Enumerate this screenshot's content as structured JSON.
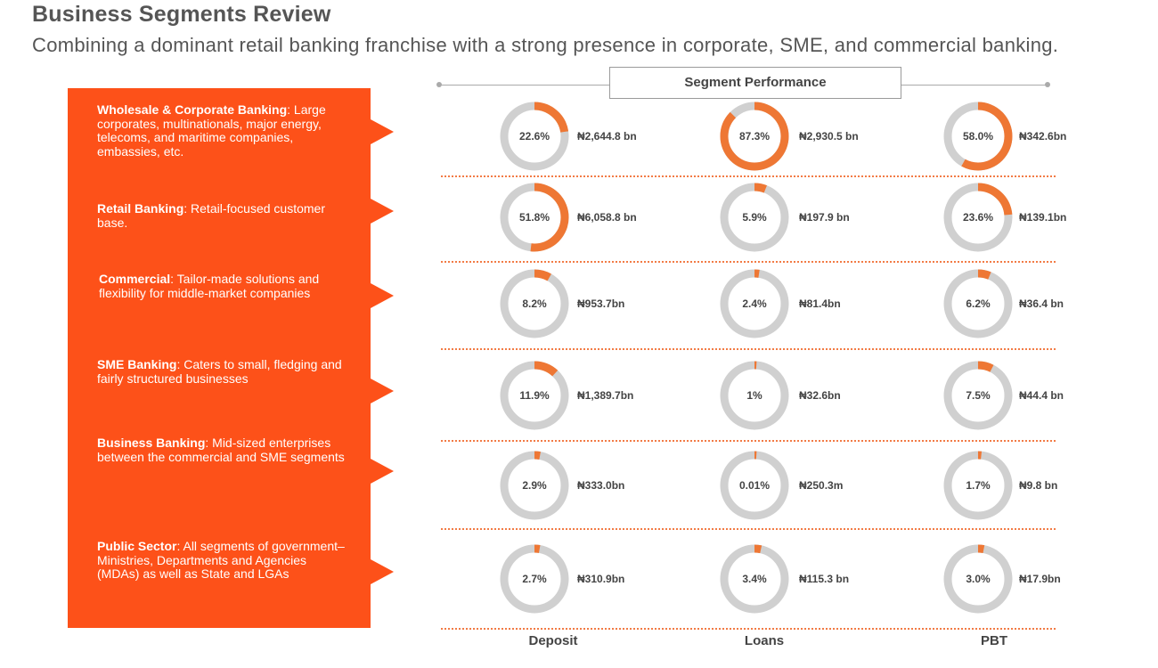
{
  "title": "Business Segments Review",
  "subtitle": "Combining a dominant retail banking franchise with a strong presence in corporate, SME, and commercial banking.",
  "header": "Segment Performance",
  "colors": {
    "accent": "#fd5119",
    "donut_fill": "#ee7734",
    "donut_track": "#d0d0d0"
  },
  "segments": [
    {
      "name": "Wholesale & Corporate Banking",
      "desc": ": Large corporates, multinationals, major energy, telecoms, and maritime companies, embassies, etc."
    },
    {
      "name": "Retail Banking",
      "desc": ": Retail-focused customer base."
    },
    {
      "name": "Commercial",
      "desc": ": Tailor-made solutions and flexibility for middle-market companies"
    },
    {
      "name": "SME Banking",
      "desc": ": Caters to small, fledging and fairly structured businesses"
    },
    {
      "name": "Business Banking",
      "desc": ": Mid-sized enterprises between the commercial and SME segments"
    },
    {
      "name": "Public Sector",
      "desc": ": All segments of government– Ministries, Departments and Agencies (MDAs) as well as State and LGAs"
    }
  ],
  "chart_data": {
    "type": "donut-grid",
    "columns": [
      "Deposit",
      "Loans",
      "PBT"
    ],
    "rows": [
      {
        "segment": "Wholesale & Corporate Banking",
        "values": [
          {
            "pct": 22.6,
            "pct_label": "22.6%",
            "amount": "₦2,644.8 bn"
          },
          {
            "pct": 87.3,
            "pct_label": "87.3%",
            "amount": "₦2,930.5 bn"
          },
          {
            "pct": 58.0,
            "pct_label": "58.0%",
            "amount": "₦342.6bn"
          }
        ]
      },
      {
        "segment": "Retail Banking",
        "values": [
          {
            "pct": 51.8,
            "pct_label": "51.8%",
            "amount": "₦6,058.8 bn"
          },
          {
            "pct": 5.9,
            "pct_label": "5.9%",
            "amount": "₦197.9 bn"
          },
          {
            "pct": 23.6,
            "pct_label": "23.6%",
            "amount": "₦139.1bn"
          }
        ]
      },
      {
        "segment": "Commercial",
        "values": [
          {
            "pct": 8.2,
            "pct_label": "8.2%",
            "amount": "₦953.7bn"
          },
          {
            "pct": 2.4,
            "pct_label": "2.4%",
            "amount": "₦81.4bn"
          },
          {
            "pct": 6.2,
            "pct_label": "6.2%",
            "amount": "₦36.4 bn"
          }
        ]
      },
      {
        "segment": "SME Banking",
        "values": [
          {
            "pct": 11.9,
            "pct_label": "11.9%",
            "amount": "₦1,389.7bn"
          },
          {
            "pct": 1,
            "pct_label": "1%",
            "amount": "₦32.6bn"
          },
          {
            "pct": 7.5,
            "pct_label": "7.5%",
            "amount": "₦44.4 bn"
          }
        ]
      },
      {
        "segment": "Business Banking",
        "values": [
          {
            "pct": 2.9,
            "pct_label": "2.9%",
            "amount": "₦333.0bn"
          },
          {
            "pct": 0.01,
            "pct_label": "0.01%",
            "amount": "₦250.3m"
          },
          {
            "pct": 1.7,
            "pct_label": "1.7%",
            "amount": "₦9.8 bn"
          }
        ]
      },
      {
        "segment": "Public Sector",
        "values": [
          {
            "pct": 2.7,
            "pct_label": "2.7%",
            "amount": "₦310.9bn"
          },
          {
            "pct": 3.4,
            "pct_label": "3.4%",
            "amount": "₦115.3 bn"
          },
          {
            "pct": 3.0,
            "pct_label": "3.0%",
            "amount": "₦17.9bn"
          }
        ]
      }
    ]
  }
}
